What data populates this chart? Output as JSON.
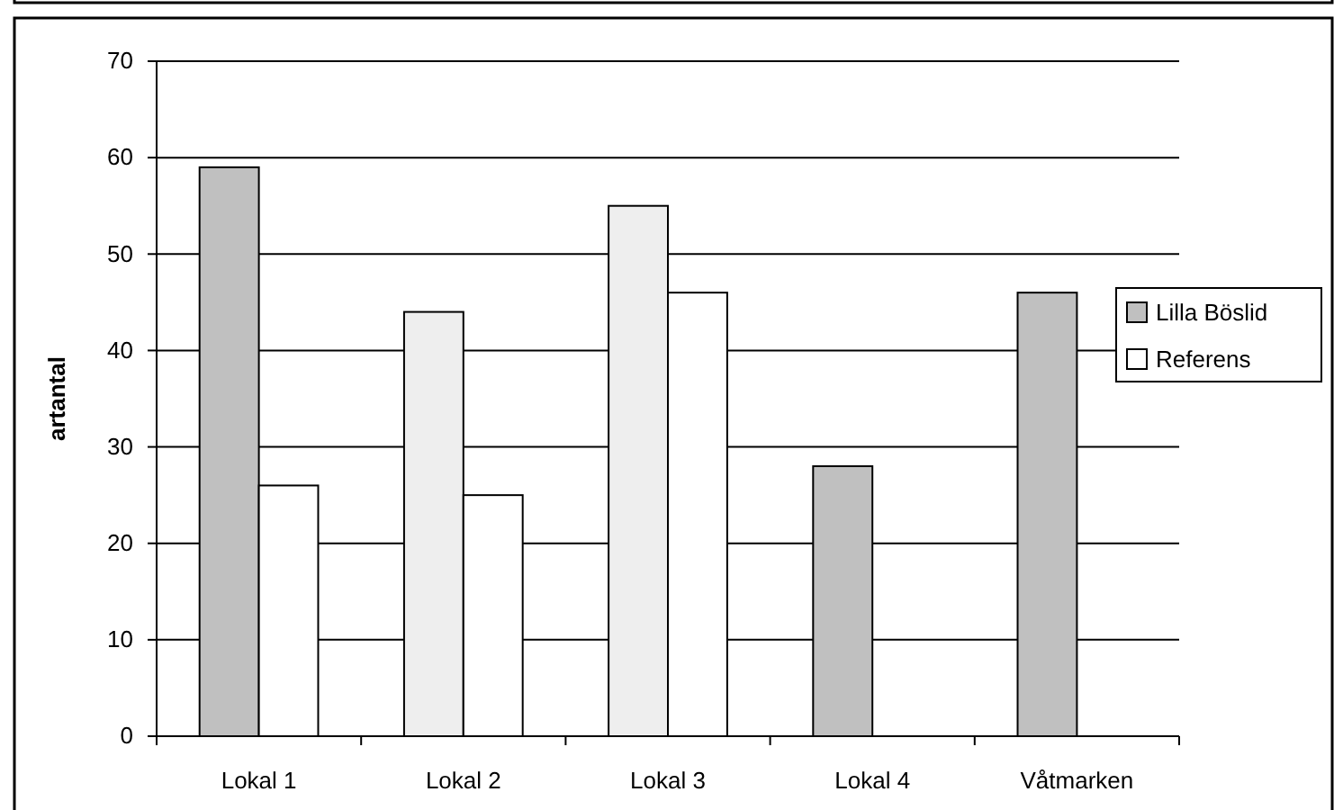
{
  "chart_data": {
    "type": "bar",
    "ylabel": "artantal",
    "categories": [
      "Lokal 1",
      "Lokal 2",
      "Lokal 3",
      "Lokal 4",
      "Våtmarken"
    ],
    "series": [
      {
        "name": "Lilla Böslid",
        "color": "#c0c0c0",
        "colors": [
          "#c0c0c0",
          "#eeeeee",
          "#eeeeee",
          "#c0c0c0",
          "#c0c0c0"
        ],
        "values": [
          59,
          44,
          55,
          28,
          46
        ]
      },
      {
        "name": "Referens",
        "color": "#ffffff",
        "values": [
          26,
          25,
          46,
          null,
          null
        ]
      }
    ],
    "ylim": [
      0,
      70
    ],
    "yticks": [
      0,
      10,
      20,
      30,
      40,
      50,
      60,
      70
    ],
    "grid": "y",
    "legend": "right"
  }
}
